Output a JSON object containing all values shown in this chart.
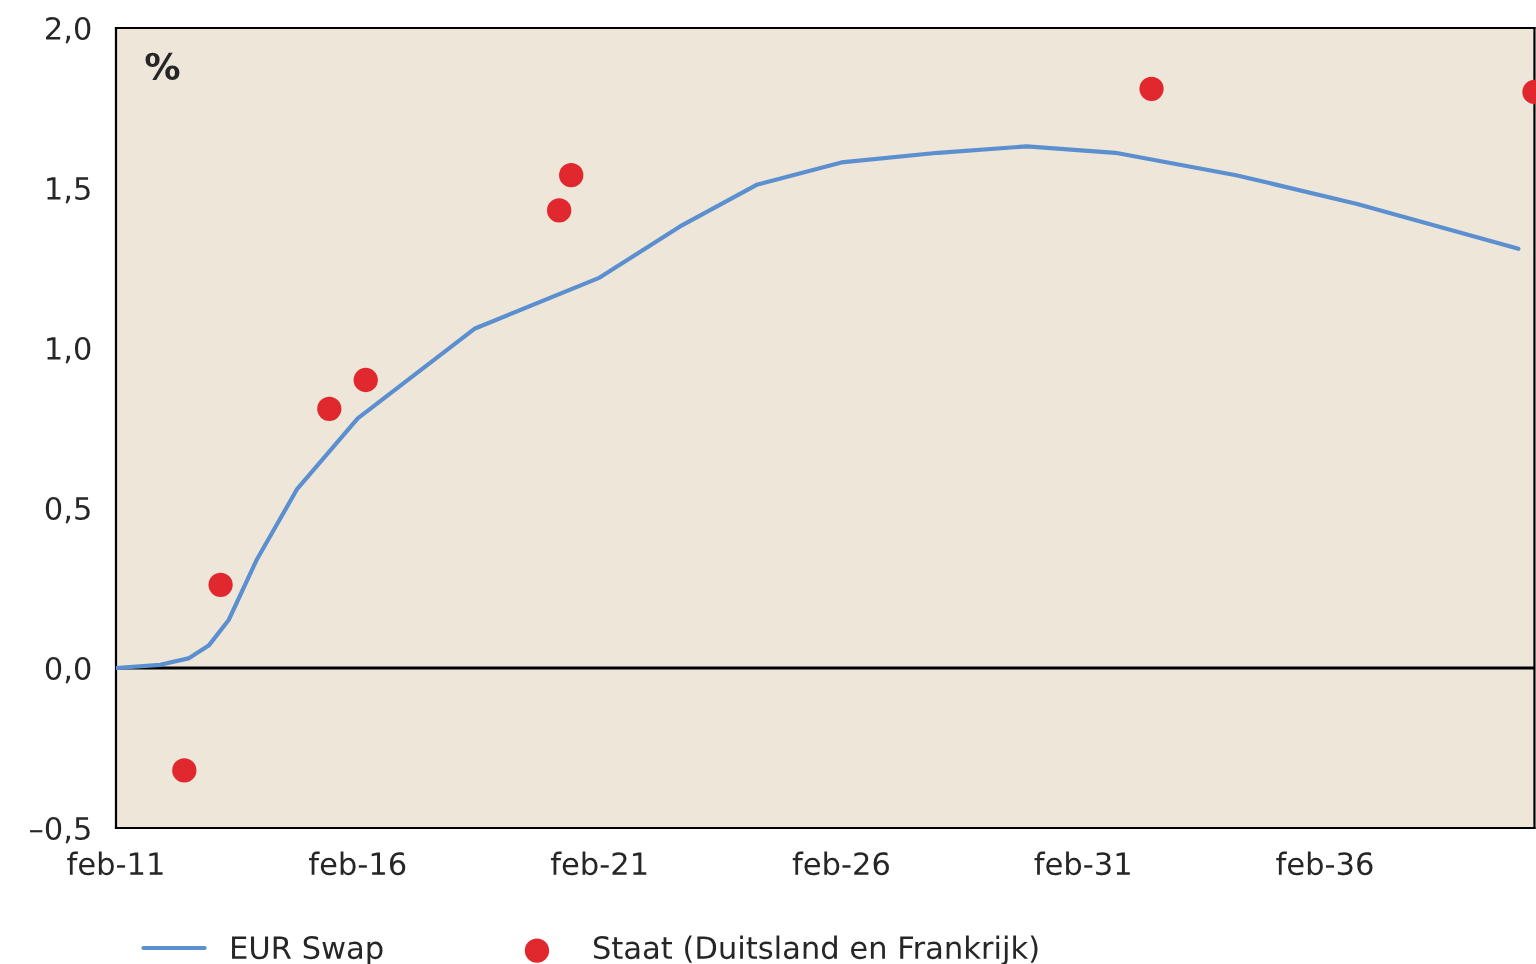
{
  "chart_data": {
    "type": "line",
    "ylabel": "%",
    "xlim": [
      "2011-02",
      "2040-06"
    ],
    "ylim": [
      -0.5,
      2.0
    ],
    "xticks": [
      {
        "value": "2011-02",
        "label": "feb-11"
      },
      {
        "value": "2016-02",
        "label": "feb-16"
      },
      {
        "value": "2021-02",
        "label": "feb-21"
      },
      {
        "value": "2026-02",
        "label": "feb-26"
      },
      {
        "value": "2031-02",
        "label": "feb-31"
      },
      {
        "value": "2036-02",
        "label": "feb-36"
      }
    ],
    "yticks": [
      {
        "value": -0.5,
        "label": "–0,5"
      },
      {
        "value": 0.0,
        "label": "0,0"
      },
      {
        "value": 0.5,
        "label": "0,5"
      },
      {
        "value": 1.0,
        "label": "1,0"
      },
      {
        "value": 1.5,
        "label": "1,5"
      },
      {
        "value": 2.0,
        "label": "2,0"
      }
    ],
    "ref_lines": [
      {
        "axis": "y",
        "value": 0,
        "color": "#000000"
      }
    ],
    "grid": false,
    "legend": "bottom",
    "series": [
      {
        "name": "EUR Swap",
        "color": "#5b8fd0",
        "marker": "none",
        "x": [
          "2011-02",
          "2012-01",
          "2012-08",
          "2013-01",
          "2013-06",
          "2014-01",
          "2014-11",
          "2016-02",
          "2018-07",
          "2021-02",
          "2022-10",
          "2024-05",
          "2026-02",
          "2028-02",
          "2029-12",
          "2031-10",
          "2034-04",
          "2036-10",
          "2040-02"
        ],
        "values": [
          0.0,
          0.01,
          0.03,
          0.07,
          0.15,
          0.34,
          0.56,
          0.78,
          1.06,
          1.22,
          1.38,
          1.51,
          1.58,
          1.61,
          1.63,
          1.61,
          1.54,
          1.45,
          1.31
        ]
      },
      {
        "name": "Staat (Duitsland en Frankrijk)",
        "type": "scatter",
        "color": "#e0282e",
        "marker": "circle",
        "x": [
          "2012-07",
          "2013-04",
          "2015-07",
          "2016-04",
          "2020-04",
          "2020-07",
          "2032-07",
          "2040-06"
        ],
        "values": [
          -0.32,
          0.26,
          0.81,
          0.9,
          1.43,
          1.54,
          1.81,
          1.8
        ]
      }
    ]
  }
}
